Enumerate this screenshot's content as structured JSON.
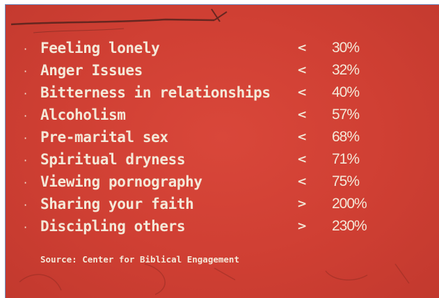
{
  "items": [
    {
      "label": "Feeling lonely",
      "comparator": "<",
      "value": "30%"
    },
    {
      "label": "Anger Issues",
      "comparator": "<",
      "value": "32%"
    },
    {
      "label": "Bitterness in relationships",
      "comparator": "<",
      "value": "40%"
    },
    {
      "label": "Alcoholism",
      "comparator": "<",
      "value": "57%"
    },
    {
      "label": "Pre-marital sex",
      "comparator": "<",
      "value": "68%"
    },
    {
      "label": "Spiritual dryness",
      "comparator": "<",
      "value": "71%"
    },
    {
      "label": "Viewing pornography",
      "comparator": "<",
      "value": "75%"
    },
    {
      "label": "Sharing your faith",
      "comparator": ">",
      "value": "200%"
    },
    {
      "label": "Discipling others",
      "comparator": ">",
      "value": "230%"
    }
  ],
  "bullet": "·",
  "source": "Source: Center for Biblical Engagement",
  "colors": {
    "background": "#cf3f33",
    "text": "#f4e8d8",
    "frame": "#6b8fc7"
  }
}
